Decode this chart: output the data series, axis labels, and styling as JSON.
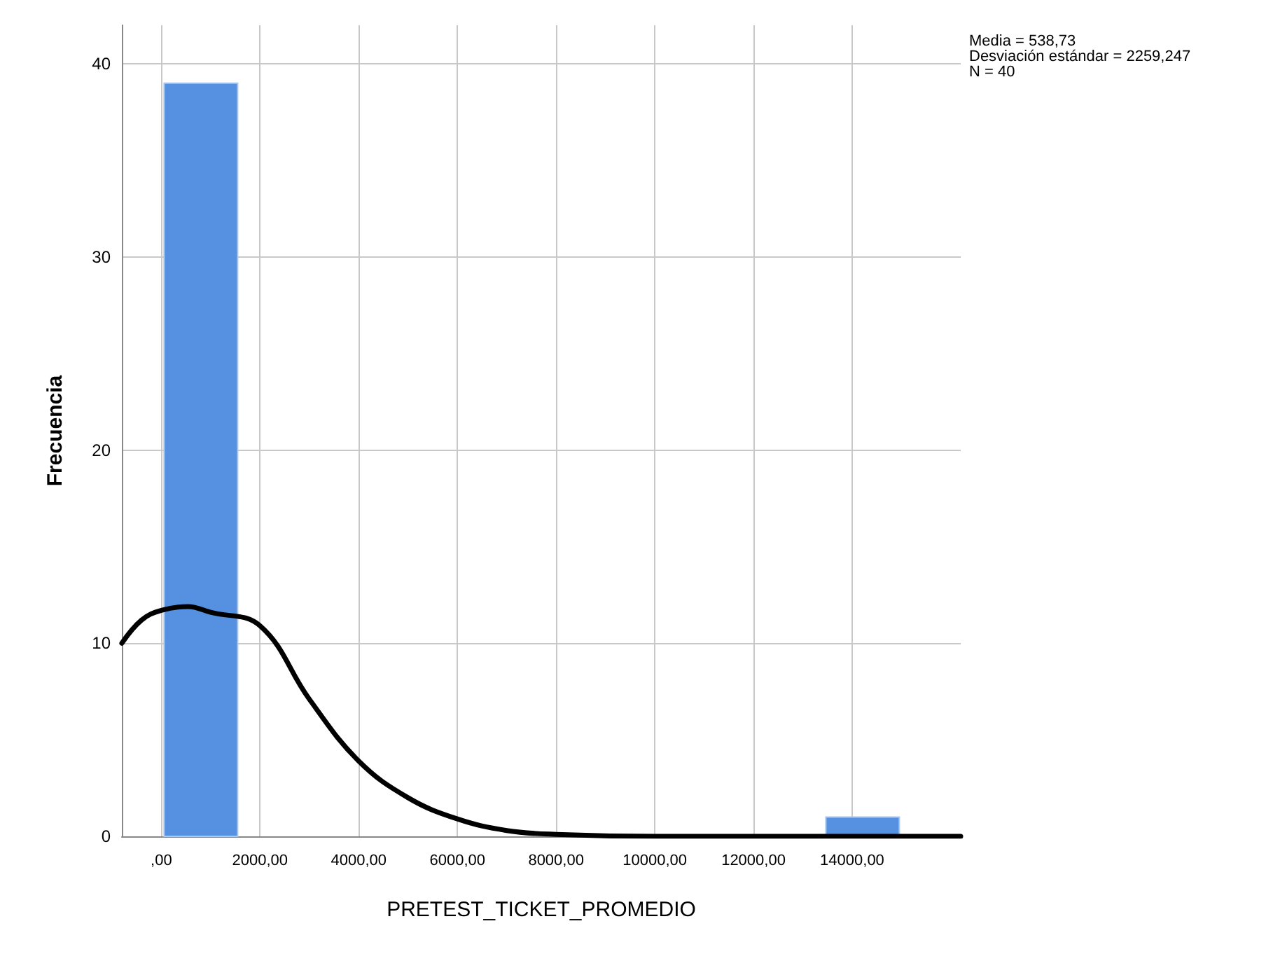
{
  "chart_data": {
    "type": "histogram",
    "xlabel": "PRETEST_TICKET_PROMEDIO",
    "ylabel": "Frecuencia",
    "annotations": [
      "Media = 538,73",
      "Desviación estándar = 2259,247",
      "N = 40"
    ],
    "bins": [
      57,
      1547,
      3037,
      4527,
      6017,
      7507,
      8997,
      10487,
      11977,
      13467,
      14957
    ],
    "series": [
      {
        "color": "#5591e0",
        "values": [
          39,
          0,
          0,
          0,
          0,
          0,
          0,
          0,
          0,
          1
        ]
      },
      {
        "type": "line",
        "color": "#000000",
        "marker": "none",
        "line_style": "solid",
        "x": [
          -800,
          -400,
          0,
          540,
          1000,
          2000,
          3000,
          4000,
          5000,
          6000,
          7000,
          8000,
          10000,
          12000,
          14000,
          16200
        ],
        "values": [
          10.0,
          11.2,
          11.7,
          11.9,
          11.6,
          10.9,
          7.1,
          3.9,
          2.0,
          0.9,
          0.3,
          0.1,
          0,
          0,
          0,
          0
        ]
      }
    ],
    "xlim": [
      -800,
      16200
    ],
    "xticks": [
      {
        "value": 0,
        "label": ",00"
      },
      {
        "value": 2000,
        "label": "2000,00"
      },
      {
        "value": 4000,
        "label": "4000,00"
      },
      {
        "value": 6000,
        "label": "6000,00"
      },
      {
        "value": 8000,
        "label": "8000,00"
      },
      {
        "value": 10000,
        "label": "10000,00"
      },
      {
        "value": 12000,
        "label": "12000,00"
      },
      {
        "value": 14000,
        "label": "14000,00"
      }
    ],
    "ylim": [
      0,
      42
    ],
    "yticks": [
      0,
      10,
      20,
      30,
      40
    ],
    "grid": true
  }
}
